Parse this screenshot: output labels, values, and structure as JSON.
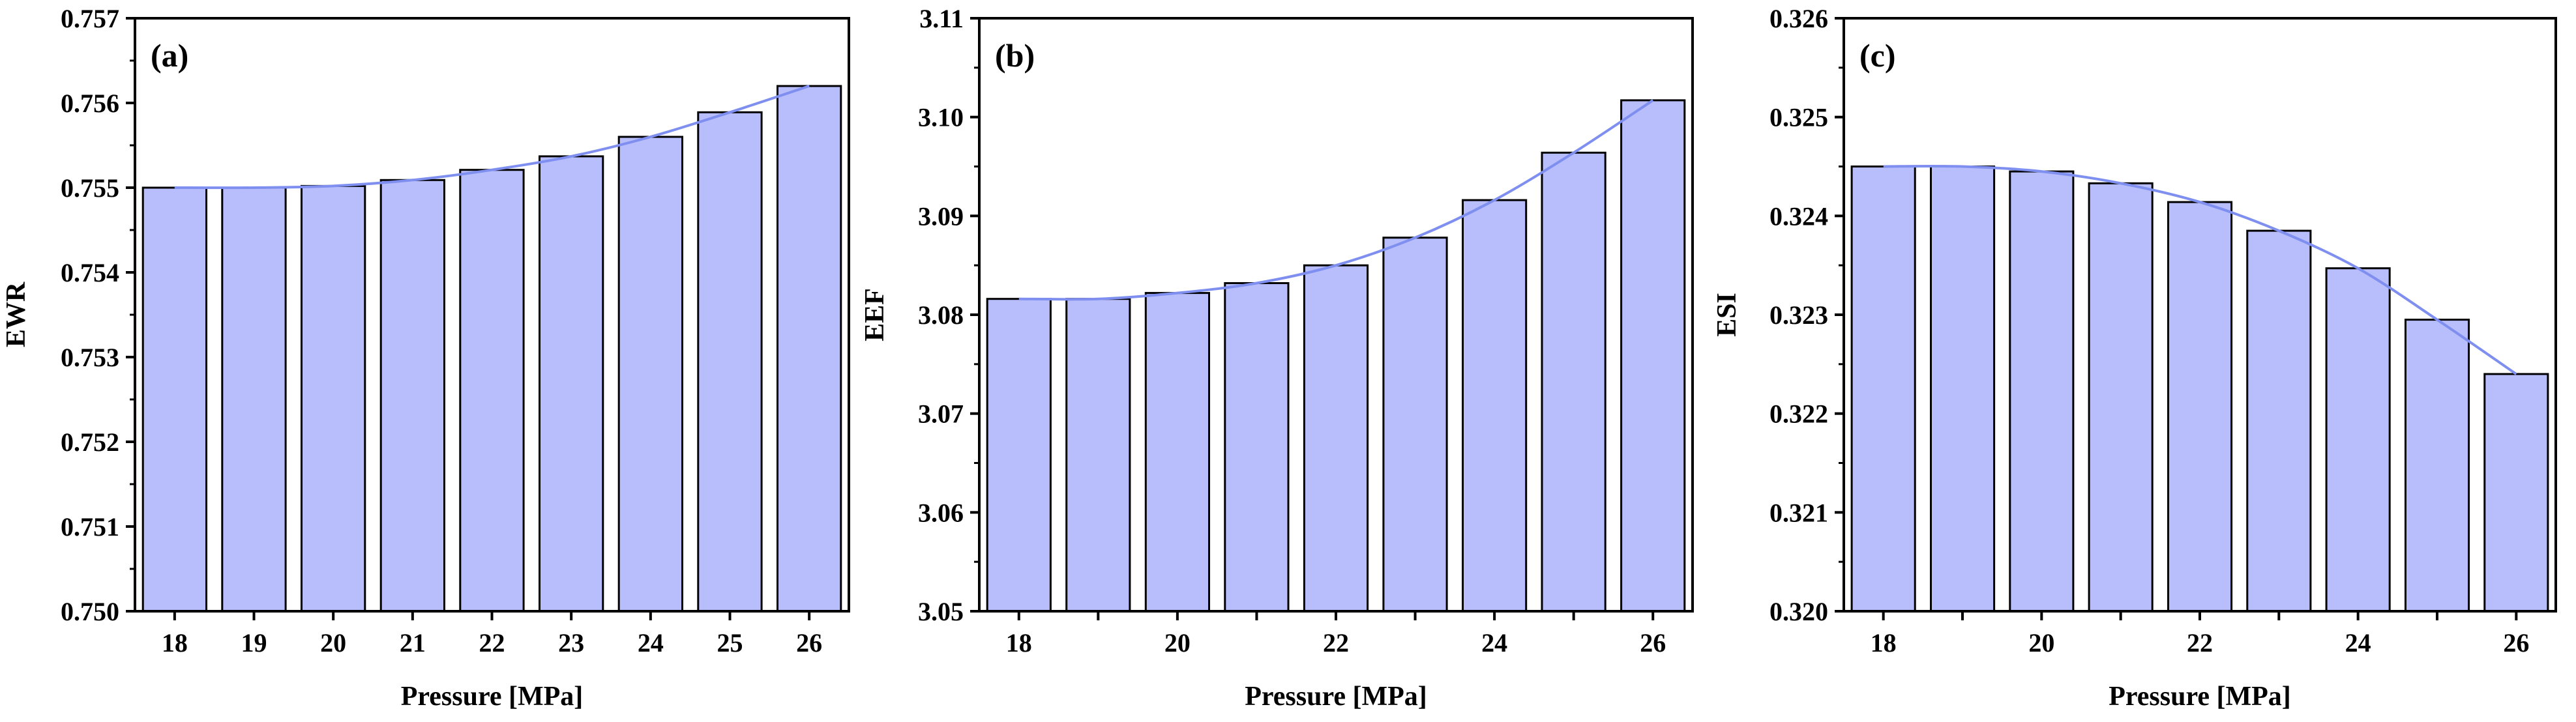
{
  "colors": {
    "bar_fill": "#b8bdfb",
    "bar_edge": "#000000",
    "curve": "#7f8ff0",
    "axis": "#000000"
  },
  "chart_data": [
    {
      "type": "bar",
      "panel_label": "(a)",
      "title": "",
      "xlabel": "Pressure [MPa]",
      "ylabel": "EWR",
      "categories": [
        18,
        19,
        20,
        21,
        22,
        23,
        24,
        25,
        26
      ],
      "x_tick_labels": [
        "18",
        "19",
        "20",
        "21",
        "22",
        "23",
        "24",
        "25",
        "26"
      ],
      "values": [
        0.755,
        0.755,
        0.75502,
        0.75509,
        0.75521,
        0.75537,
        0.7556,
        0.75589,
        0.7562
      ],
      "ylim": [
        0.75,
        0.757
      ],
      "y_ticks": [
        0.75,
        0.751,
        0.752,
        0.753,
        0.754,
        0.755,
        0.756,
        0.757
      ],
      "y_tick_labels": [
        "0.750",
        "0.751",
        "0.752",
        "0.753",
        "0.754",
        "0.755",
        "0.756",
        "0.757"
      ],
      "trend_line": true,
      "grid": false
    },
    {
      "type": "bar",
      "panel_label": "(b)",
      "title": "",
      "xlabel": "Pressure [MPa]",
      "ylabel": "EEF",
      "categories": [
        18,
        19,
        20,
        21,
        22,
        23,
        24,
        25,
        26
      ],
      "x_tick_labels": [
        "18",
        "",
        "20",
        "",
        "22",
        "",
        "24",
        "",
        "26"
      ],
      "values": [
        3.0816,
        3.0816,
        3.0822,
        3.0832,
        3.085,
        3.0878,
        3.0916,
        3.0964,
        3.1017
      ],
      "ylim": [
        3.05,
        3.11
      ],
      "y_ticks": [
        3.05,
        3.06,
        3.07,
        3.08,
        3.09,
        3.1,
        3.11
      ],
      "y_tick_labels": [
        "3.05",
        "3.06",
        "3.07",
        "3.08",
        "3.09",
        "3.10",
        "3.11"
      ],
      "trend_line": true,
      "grid": false
    },
    {
      "type": "bar",
      "panel_label": "(c)",
      "title": "",
      "xlabel": "Pressure [MPa]",
      "ylabel": "ESI",
      "categories": [
        18,
        19,
        20,
        21,
        22,
        23,
        24,
        25,
        26
      ],
      "x_tick_labels": [
        "18",
        "",
        "20",
        "",
        "22",
        "",
        "24",
        "",
        "26"
      ],
      "values": [
        0.3245,
        0.3245,
        0.32445,
        0.32433,
        0.32414,
        0.32385,
        0.32347,
        0.32295,
        0.3224
      ],
      "ylim": [
        0.32,
        0.326
      ],
      "y_ticks": [
        0.32,
        0.321,
        0.322,
        0.323,
        0.324,
        0.325,
        0.326
      ],
      "y_tick_labels": [
        "0.320",
        "0.321",
        "0.322",
        "0.323",
        "0.324",
        "0.325",
        "0.326"
      ],
      "trend_line": true,
      "grid": false
    }
  ]
}
